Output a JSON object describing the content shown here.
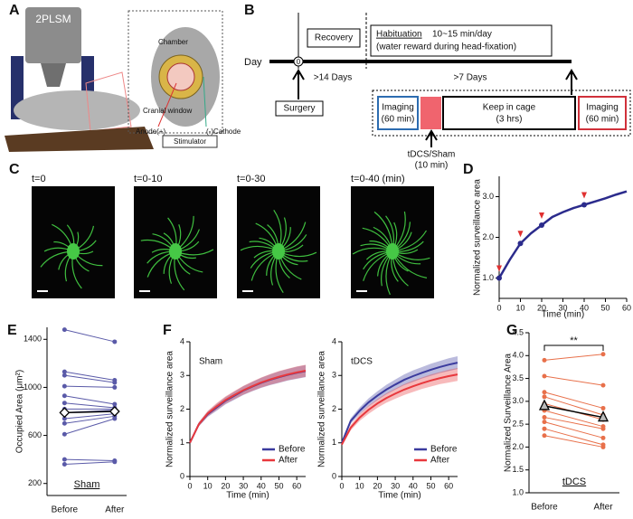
{
  "panels": {
    "labels": [
      "A",
      "B",
      "C",
      "D",
      "E",
      "F",
      "G"
    ]
  },
  "schematic": {
    "microscope": "2PLSM",
    "chamber": "Chamber",
    "window": "Cranial window",
    "anode": "Anode(+)",
    "cathode": "(-)Cathode",
    "stimulator": "Stimulator"
  },
  "timeline": {
    "day": "Day",
    "zero": "0",
    "recovery": "Recovery",
    "habituation": "Habituation",
    "habituation_time": "10~15 min/day",
    "habituation_note": "(water reward during head-fixation)",
    "period1": ">14 Days",
    "period2": ">7 Days",
    "surgery": "Surgery",
    "imaging1": [
      "Imaging",
      "(60 min)"
    ],
    "keep": [
      "Keep in cage",
      "(3 hrs)"
    ],
    "imaging2": [
      "Imaging",
      "(60 min)"
    ],
    "stim": [
      "tDCS/Sham",
      "(10 min)"
    ]
  },
  "images": {
    "labels": [
      "t=0",
      "t=0-10",
      "t=0-30",
      "t=0-40 (min)"
    ]
  },
  "chart_data": [
    {
      "type": "line",
      "xlabel": "Time (min)",
      "ylabel": "Normalized surveillance area",
      "x": [
        0,
        5,
        10,
        15,
        20,
        25,
        30,
        35,
        40,
        45,
        50,
        55,
        60
      ],
      "values": [
        1.0,
        1.45,
        1.85,
        2.1,
        2.3,
        2.5,
        2.62,
        2.72,
        2.8,
        2.88,
        2.96,
        3.05,
        3.13
      ],
      "color": "#2b2b8c",
      "highlight_x": [
        0,
        10,
        20,
        40
      ],
      "highlight_color": "#e03030",
      "xlim": [
        0,
        60
      ],
      "xticks": [
        0,
        10,
        20,
        30,
        40,
        50,
        60
      ],
      "ylim": [
        0.5,
        3.5
      ],
      "yticks": [
        {
          "value": 1,
          "label": "1.0"
        },
        {
          "value": 2,
          "label": "2.0"
        },
        {
          "value": 3,
          "label": "3.0"
        }
      ]
    },
    {
      "type": "paired",
      "ylabel": "Occupied Area (μm²)",
      "label": "Sham",
      "categories": [
        "Before",
        "After"
      ],
      "color": "#5a5aa8",
      "pairs": [
        [
          1480,
          1380
        ],
        [
          1130,
          1060
        ],
        [
          1100,
          1040
        ],
        [
          1010,
          1000
        ],
        [
          930,
          860
        ],
        [
          870,
          830
        ],
        [
          820,
          820
        ],
        [
          790,
          810
        ],
        [
          740,
          780
        ],
        [
          700,
          760
        ],
        [
          610,
          740
        ],
        [
          400,
          390
        ],
        [
          360,
          380
        ]
      ],
      "mean": [
        790,
        800
      ],
      "mean_marker": "diamond",
      "ylim": [
        100,
        1500
      ],
      "yticks": [
        200,
        600,
        1000,
        1400
      ]
    },
    {
      "type": "band",
      "title": "Sham",
      "xlabel": "Time (min)",
      "ylabel": "Normalized surveillance area",
      "legend": "lower right",
      "x": [
        0,
        5,
        10,
        15,
        20,
        25,
        30,
        35,
        40,
        45,
        50,
        55,
        60,
        65
      ],
      "series": [
        {
          "name": "Before",
          "color": "#3b3b9e",
          "values": [
            1,
            1.55,
            1.85,
            2.05,
            2.25,
            2.4,
            2.55,
            2.67,
            2.78,
            2.87,
            2.95,
            3.02,
            3.08,
            3.13
          ],
          "errors": [
            0.03,
            0.06,
            0.08,
            0.1,
            0.11,
            0.12,
            0.13,
            0.14,
            0.15,
            0.16,
            0.17,
            0.17,
            0.18,
            0.18
          ]
        },
        {
          "name": "After",
          "color": "#e8383d",
          "values": [
            1,
            1.55,
            1.87,
            2.08,
            2.27,
            2.42,
            2.56,
            2.68,
            2.79,
            2.88,
            2.96,
            3.03,
            3.09,
            3.14
          ],
          "errors": [
            0.03,
            0.06,
            0.08,
            0.1,
            0.11,
            0.12,
            0.13,
            0.14,
            0.15,
            0.16,
            0.17,
            0.17,
            0.18,
            0.18
          ]
        }
      ],
      "xlim": [
        0,
        65
      ],
      "xticks": [
        0,
        10,
        20,
        30,
        40,
        50,
        60
      ],
      "ylim": [
        0,
        4
      ],
      "yticks": [
        0,
        1,
        2,
        3,
        4
      ]
    },
    {
      "type": "band",
      "title": "tDCS",
      "xlabel": "Time (min)",
      "ylabel": "Normalized surveillance area",
      "legend": "lower right",
      "x": [
        0,
        5,
        10,
        15,
        20,
        25,
        30,
        35,
        40,
        45,
        50,
        55,
        60,
        65
      ],
      "series": [
        {
          "name": "Before",
          "color": "#3b3b9e",
          "values": [
            1,
            1.65,
            1.95,
            2.2,
            2.4,
            2.58,
            2.73,
            2.87,
            2.98,
            3.08,
            3.17,
            3.25,
            3.32,
            3.38
          ],
          "errors": [
            0.05,
            0.08,
            0.1,
            0.12,
            0.13,
            0.14,
            0.15,
            0.16,
            0.17,
            0.17,
            0.18,
            0.18,
            0.19,
            0.19
          ]
        },
        {
          "name": "After",
          "color": "#e8383d",
          "values": [
            0.95,
            1.45,
            1.75,
            1.98,
            2.17,
            2.33,
            2.46,
            2.58,
            2.68,
            2.77,
            2.85,
            2.92,
            2.98,
            3.03
          ],
          "errors": [
            0.05,
            0.08,
            0.1,
            0.12,
            0.13,
            0.14,
            0.15,
            0.16,
            0.17,
            0.17,
            0.18,
            0.18,
            0.19,
            0.19
          ]
        }
      ],
      "xlim": [
        0,
        65
      ],
      "xticks": [
        0,
        10,
        20,
        30,
        40,
        50,
        60
      ],
      "ylim": [
        0,
        4
      ],
      "yticks": [
        0,
        1,
        2,
        3,
        4
      ]
    },
    {
      "type": "paired",
      "ylabel": "Normalized Surveillance Area",
      "label": "tDCS",
      "annotation": "**",
      "categories": [
        "Before",
        "After"
      ],
      "color": "#e8704a",
      "pairs": [
        [
          3.9,
          4.03
        ],
        [
          3.55,
          3.35
        ],
        [
          3.2,
          2.85
        ],
        [
          3.1,
          2.7
        ],
        [
          2.95,
          2.6
        ],
        [
          2.8,
          2.45
        ],
        [
          2.65,
          2.4
        ],
        [
          2.55,
          2.2
        ],
        [
          2.4,
          2.05
        ],
        [
          2.25,
          2.0
        ]
      ],
      "mean": [
        2.9,
        2.65
      ],
      "mean_marker": "triangle",
      "ylim": [
        1.0,
        4.5
      ],
      "yticks": [
        {
          "value": 1,
          "label": "1.0"
        },
        {
          "value": 1.5,
          "label": "1.5"
        },
        {
          "value": 2,
          "label": "2.0"
        },
        {
          "value": 2.5,
          "label": "2.5"
        },
        {
          "value": 3,
          "label": "3.0"
        },
        {
          "value": 3.5,
          "label": "3.5"
        },
        {
          "value": 4,
          "label": "4.0"
        },
        {
          "value": 4.5,
          "label": "4.5"
        }
      ]
    }
  ]
}
